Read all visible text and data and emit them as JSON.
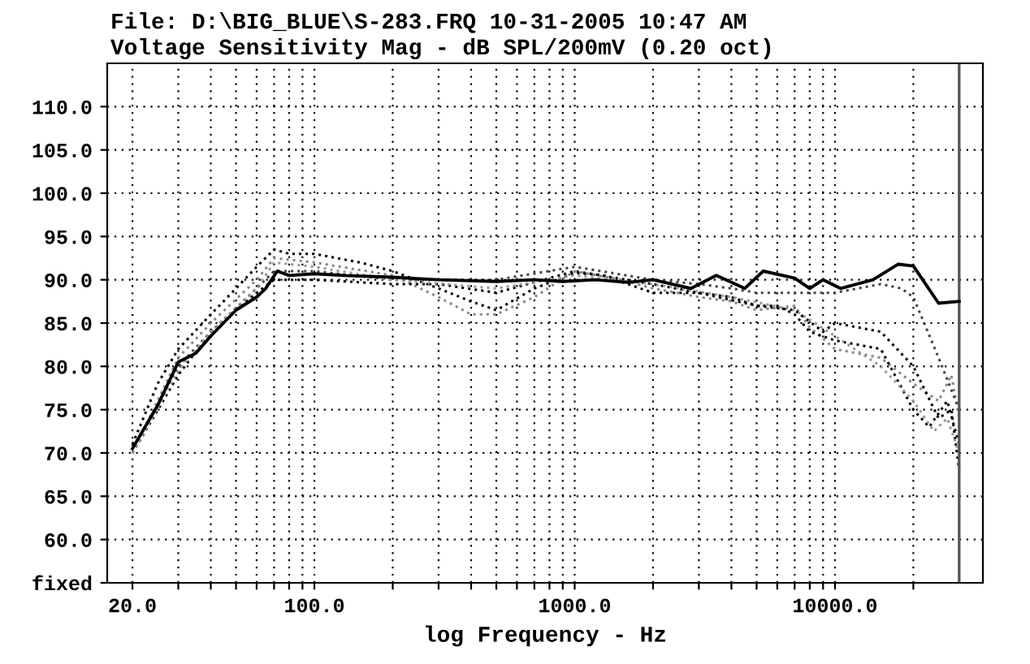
{
  "chart_data": {
    "type": "line",
    "title": "File: D:\\BIG_BLUE\\S-283.FRQ 10-31-2005 10:47 AM",
    "subtitle": "Voltage Sensitivity Mag - dB SPL/200mV (0.20 oct)",
    "xlabel": "log Frequency - Hz",
    "log": "x",
    "grid": true,
    "marker": "none",
    "xlim": [
      16,
      37000
    ],
    "ylim": [
      55,
      115
    ],
    "xticks": [
      {
        "value": 20,
        "label": "20.0"
      },
      {
        "value": 30,
        "label": null
      },
      {
        "value": 40,
        "label": null
      },
      {
        "value": 50,
        "label": null
      },
      {
        "value": 60,
        "label": null
      },
      {
        "value": 70,
        "label": null
      },
      {
        "value": 80,
        "label": null
      },
      {
        "value": 90,
        "label": null
      },
      {
        "value": 100,
        "label": "100.0"
      },
      {
        "value": 200,
        "label": null
      },
      {
        "value": 300,
        "label": null
      },
      {
        "value": 400,
        "label": null
      },
      {
        "value": 500,
        "label": null
      },
      {
        "value": 600,
        "label": null
      },
      {
        "value": 700,
        "label": null
      },
      {
        "value": 800,
        "label": null
      },
      {
        "value": 900,
        "label": null
      },
      {
        "value": 1000,
        "label": "1000.0"
      },
      {
        "value": 2000,
        "label": null
      },
      {
        "value": 3000,
        "label": null
      },
      {
        "value": 4000,
        "label": null
      },
      {
        "value": 5000,
        "label": null
      },
      {
        "value": 6000,
        "label": null
      },
      {
        "value": 7000,
        "label": null
      },
      {
        "value": 8000,
        "label": null
      },
      {
        "value": 9000,
        "label": null
      },
      {
        "value": 10000,
        "label": "10000.0"
      },
      {
        "value": 20000,
        "label": null
      }
    ],
    "yticks": [
      {
        "value": 55,
        "label": "fixed"
      },
      {
        "value": 60,
        "label": "60.0"
      },
      {
        "value": 65,
        "label": "65.0"
      },
      {
        "value": 70,
        "label": "70.0"
      },
      {
        "value": 75,
        "label": "75.0"
      },
      {
        "value": 80,
        "label": "80.0"
      },
      {
        "value": 85,
        "label": "85.0"
      },
      {
        "value": 90,
        "label": "90.0"
      },
      {
        "value": 95,
        "label": "95.0"
      },
      {
        "value": 100,
        "label": "100.0"
      },
      {
        "value": 105,
        "label": "105.0"
      },
      {
        "value": 110,
        "label": "110.0"
      }
    ],
    "ref_lines": [
      {
        "axis": "x",
        "value": 30000,
        "label": null,
        "color": "#555555",
        "line_style": "solid"
      }
    ],
    "series": [
      {
        "color": "#888888",
        "line_style": "dotted",
        "x": [
          20,
          30,
          40,
          60,
          70,
          100,
          200,
          300,
          400,
          500,
          700,
          1000,
          1500,
          2000,
          3000,
          4000,
          5000,
          7000,
          8000,
          10000,
          15000,
          20000,
          25000,
          28000,
          30000
        ],
        "values": [
          70,
          81,
          85,
          90,
          92.5,
          92,
          90.5,
          88,
          86,
          86,
          88,
          91,
          90,
          89,
          88,
          87.5,
          86.5,
          87,
          84.5,
          82,
          81,
          78,
          76,
          79,
          74
        ]
      },
      {
        "color": "#000000",
        "line_style": "dotted",
        "x": [
          20,
          25,
          30,
          40,
          50,
          60,
          70,
          80,
          100,
          150,
          200,
          300,
          400,
          500,
          700,
          1000,
          1300,
          1600,
          2000,
          3000,
          4000,
          5000,
          6000,
          7000,
          8000,
          10000,
          15000,
          20000,
          23000,
          27000,
          30000
        ],
        "values": [
          71,
          78,
          82,
          86,
          89,
          91.5,
          93.5,
          93,
          93,
          92,
          91,
          89,
          87.5,
          86.5,
          89,
          90.8,
          90.5,
          89.5,
          88.5,
          88.5,
          88,
          87,
          87,
          86,
          84,
          83,
          82,
          75,
          73,
          76,
          71
        ]
      },
      {
        "color": "#444444",
        "line_style": "dotted",
        "x": [
          20,
          30,
          40,
          60,
          70,
          100,
          200,
          300,
          500,
          1000,
          2000,
          3000,
          4000,
          5000,
          7000,
          10000,
          15000,
          18000,
          20000,
          25000,
          30000
        ],
        "values": [
          70,
          80,
          84,
          89,
          91,
          91,
          90,
          90,
          90,
          91.5,
          90,
          89.5,
          89,
          88.5,
          88.5,
          88.5,
          89.5,
          89,
          88,
          81,
          75
        ]
      },
      {
        "color": "#000000",
        "line_style": "dotted",
        "x": [
          20,
          30,
          40,
          60,
          70,
          100,
          200,
          300,
          500,
          1000,
          2000,
          3000,
          5000,
          7000,
          9000,
          10000,
          15000,
          20000,
          25000,
          28000,
          30000
        ],
        "values": [
          70,
          79,
          84,
          88.5,
          90,
          90,
          89.5,
          89.5,
          88.5,
          91,
          89.5,
          88.5,
          87,
          86.5,
          84,
          85,
          84,
          80,
          74,
          75,
          68
        ]
      },
      {
        "color": "#999999",
        "line_style": "dotted",
        "x": [
          20,
          30,
          40,
          60,
          70,
          100,
          200,
          500,
          1000,
          2000,
          4000,
          7000,
          10000,
          15000,
          20000,
          24000,
          27000,
          30000
        ],
        "values": [
          70,
          79.5,
          84,
          89,
          92,
          91.5,
          90,
          89,
          90.5,
          89.5,
          88,
          86.5,
          83.5,
          80,
          76,
          72.5,
          74,
          70
        ]
      },
      {
        "color": "#000000",
        "line_style": "solid",
        "x": [
          20,
          25,
          30,
          35,
          40,
          50,
          60,
          65,
          72,
          80,
          100,
          130,
          200,
          300,
          500,
          700,
          900,
          1200,
          1600,
          2000,
          2800,
          3500,
          4500,
          5300,
          7000,
          8000,
          9000,
          10500,
          14000,
          17500,
          20000,
          25000,
          30000
        ],
        "values": [
          70.5,
          75.5,
          80.5,
          81.5,
          83.5,
          86.5,
          88,
          89,
          91,
          90.5,
          90.7,
          90.5,
          90.3,
          90,
          89.8,
          90,
          89.8,
          90,
          89.7,
          90,
          89,
          90.5,
          89,
          91,
          90.2,
          89,
          90,
          89,
          90,
          91.8,
          91.6,
          87.3,
          87.5
        ]
      }
    ]
  }
}
